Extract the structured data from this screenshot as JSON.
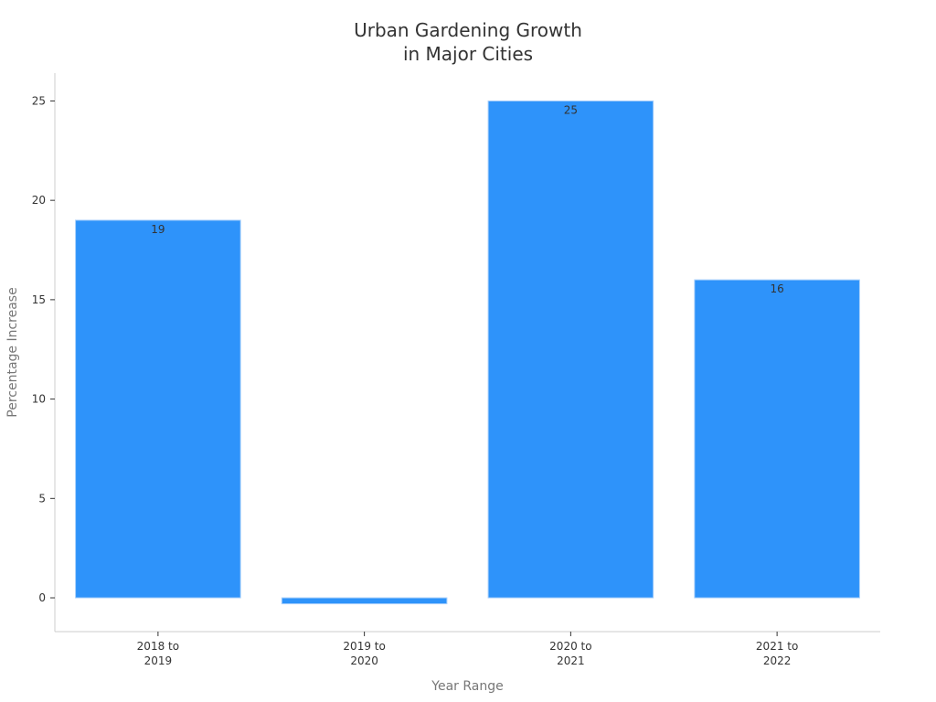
{
  "chart_data": {
    "type": "bar",
    "title": "Urban Gardening Growth\nin Major Cities",
    "xlabel": "Year Range",
    "ylabel": "Percentage Increase",
    "categories": [
      "2018 to\n2019",
      "2019 to\n2020",
      "2020 to\n2021",
      "2021 to\n2022"
    ],
    "values": [
      19,
      -0.3,
      25,
      16
    ],
    "data_labels": [
      "19",
      "",
      "25",
      "16"
    ],
    "yticks": [
      0,
      5,
      10,
      15,
      20,
      25
    ],
    "ylim": [
      -1.7,
      26.4
    ],
    "grid": false,
    "bar_color": "#2e93fa",
    "bar_edge_color": "#a9d0fb",
    "axis_color": "#cccccc"
  }
}
